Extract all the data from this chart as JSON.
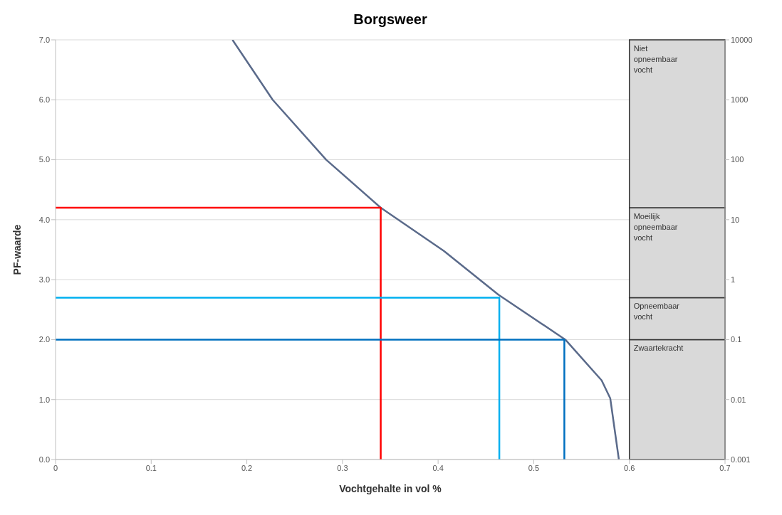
{
  "chart_data": {
    "type": "line",
    "title": "Borgsweer",
    "xlabel": "Vochtgehalte in vol %",
    "ylabel": "PF-waarde",
    "xlim": [
      0,
      0.7
    ],
    "xticks": [
      0,
      0.1,
      0.2,
      0.3,
      0.4,
      0.5,
      0.6,
      0.7
    ],
    "ylim": [
      0,
      7
    ],
    "yticks": [
      {
        "value": 0,
        "label": "0.0"
      },
      {
        "value": 1,
        "label": "1.0"
      },
      {
        "value": 2,
        "label": "2.0"
      },
      {
        "value": 3,
        "label": "3.0"
      },
      {
        "value": 4,
        "label": "4.0"
      },
      {
        "value": 5,
        "label": "5.0"
      },
      {
        "value": 6,
        "label": "6.0"
      },
      {
        "value": 7,
        "label": "7.0"
      }
    ],
    "y2lim": [
      0.001,
      10000
    ],
    "y2ticks": [
      0.001,
      0.01,
      0.1,
      1,
      10,
      100,
      1000,
      10000
    ],
    "log": "y2",
    "grid": "y",
    "marker": "none",
    "series": [
      {
        "color": "#5a6a8a",
        "x": [
          0.185,
          0.227,
          0.283,
          0.34,
          0.406,
          0.463,
          0.533,
          0.571,
          0.58,
          0.589
        ],
        "values": [
          7.0,
          6.0,
          5.0,
          4.2,
          3.48,
          2.75,
          2.0,
          1.32,
          1.02,
          0.0
        ]
      },
      {
        "color": "#ff0000",
        "x": [
          0,
          0.34,
          0.34
        ],
        "values": [
          4.2,
          4.2,
          0
        ]
      },
      {
        "color": "#00b0f0",
        "x": [
          0,
          0.464,
          0.464
        ],
        "values": [
          2.7,
          2.7,
          0
        ]
      },
      {
        "color": "#0070c0",
        "x": [
          0,
          0.532,
          0.532
        ],
        "values": [
          2.0,
          2.0,
          0
        ]
      }
    ],
    "bands": [
      {
        "axis": "y",
        "from": 0,
        "to": 2,
        "label": "Zwaartekracht",
        "color": "#d9d9d9"
      },
      {
        "axis": "y",
        "from": 2,
        "to": 2.7,
        "label": "Opneembaar vocht",
        "color": "#d9d9d9"
      },
      {
        "axis": "y",
        "from": 2.7,
        "to": 4.2,
        "label": "Moeilijk opneembaar vocht",
        "color": "#d9d9d9"
      },
      {
        "axis": "y",
        "from": 4.2,
        "to": 7,
        "label": "Niet opneembaar vocht",
        "color": "#d9d9d9"
      }
    ]
  }
}
